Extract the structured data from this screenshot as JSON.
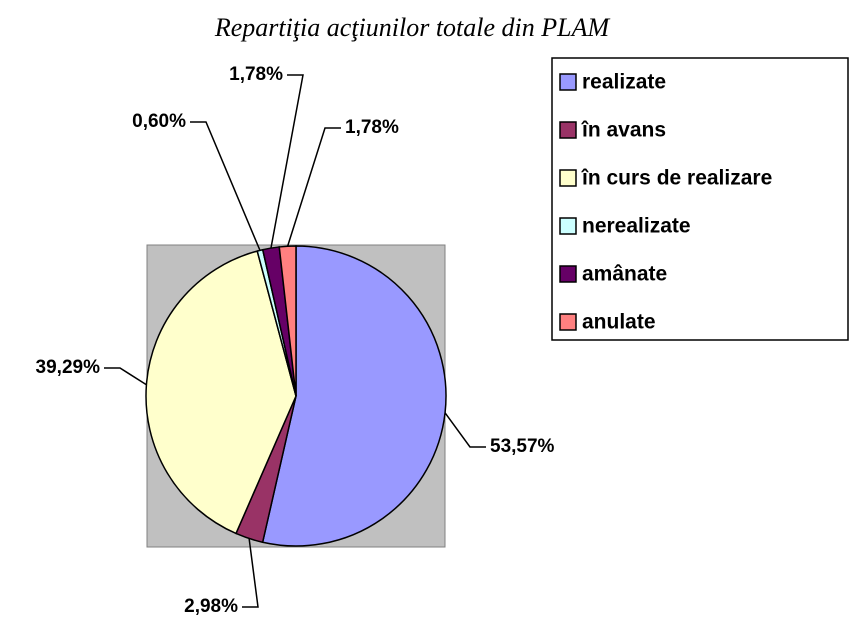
{
  "chart_data": {
    "type": "pie",
    "title": "Repartiţia acţiunilor totale din PLAM",
    "categories": [
      "realizate",
      "în avans",
      "în curs de realizare",
      "nerealizate",
      "amânate",
      "anulate"
    ],
    "values": [
      53.57,
      2.98,
      39.29,
      0.6,
      1.78,
      1.78
    ],
    "value_labels": [
      "53,57%",
      "2,98%",
      "39,29%",
      "0,60%",
      "1,78%",
      "1,78%"
    ],
    "colors": [
      "#9999ff",
      "#993366",
      "#ffffcc",
      "#ccffff",
      "#660066",
      "#ff8080"
    ],
    "legend": "right"
  }
}
